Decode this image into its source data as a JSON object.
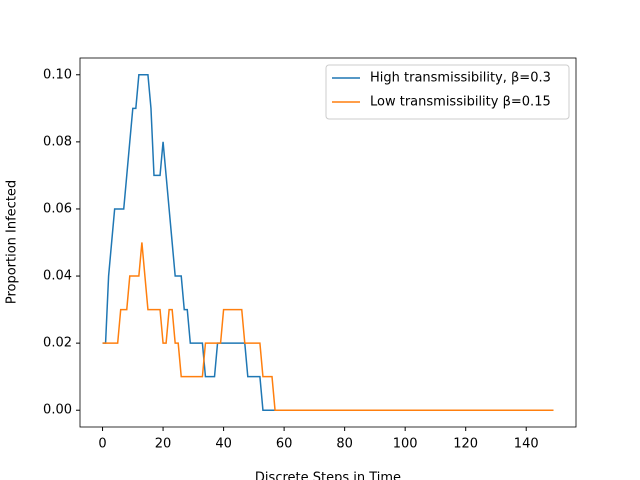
{
  "chart_data": {
    "type": "line",
    "xlabel": "Discrete Steps in Time",
    "ylabel": "Proportion Infected",
    "x": [
      0,
      1,
      2,
      3,
      4,
      5,
      6,
      7,
      8,
      9,
      10,
      11,
      12,
      13,
      14,
      15,
      16,
      17,
      18,
      19,
      20,
      21,
      22,
      23,
      24,
      25,
      26,
      27,
      28,
      29,
      30,
      31,
      32,
      33,
      34,
      35,
      36,
      37,
      38,
      39,
      40,
      41,
      42,
      43,
      44,
      45,
      46,
      47,
      48,
      49,
      50,
      51,
      52,
      53,
      54,
      55,
      56,
      57,
      58,
      59,
      60,
      61,
      62,
      63,
      64,
      65,
      66,
      67,
      68,
      69,
      70,
      71,
      72,
      73,
      74,
      75,
      76,
      77,
      78,
      79,
      80,
      81,
      82,
      83,
      84,
      85,
      86,
      87,
      88,
      89,
      90,
      91,
      92,
      93,
      94,
      95,
      96,
      97,
      98,
      99,
      100,
      101,
      102,
      103,
      104,
      105,
      106,
      107,
      108,
      109,
      110,
      111,
      112,
      113,
      114,
      115,
      116,
      117,
      118,
      119,
      120,
      121,
      122,
      123,
      124,
      125,
      126,
      127,
      128,
      129,
      130,
      131,
      132,
      133,
      134,
      135,
      136,
      137,
      138,
      139,
      140,
      141,
      142,
      143,
      144,
      145,
      146,
      147,
      148,
      149
    ],
    "series": [
      {
        "name": "High transmissibility, β=0.3",
        "color": "#1f77b4",
        "values": [
          0.02,
          0.02,
          0.04,
          0.05,
          0.06,
          0.06,
          0.06,
          0.06,
          0.07,
          0.08,
          0.09,
          0.09,
          0.1,
          0.1,
          0.1,
          0.1,
          0.09,
          0.07,
          0.07,
          0.07,
          0.08,
          0.07,
          0.06,
          0.05,
          0.04,
          0.04,
          0.04,
          0.03,
          0.03,
          0.02,
          0.02,
          0.02,
          0.02,
          0.02,
          0.01,
          0.01,
          0.01,
          0.01,
          0.02,
          0.02,
          0.02,
          0.02,
          0.02,
          0.02,
          0.02,
          0.02,
          0.02,
          0.02,
          0.01,
          0.01,
          0.01,
          0.01,
          0.01,
          0,
          0,
          0,
          0,
          0,
          0,
          0,
          0,
          0,
          0,
          0,
          0,
          0,
          0,
          0,
          0,
          0,
          0,
          0,
          0,
          0,
          0,
          0,
          0,
          0,
          0,
          0,
          0,
          0,
          0,
          0,
          0,
          0,
          0,
          0,
          0,
          0,
          0,
          0,
          0,
          0,
          0,
          0,
          0,
          0,
          0,
          0,
          0,
          0,
          0,
          0,
          0,
          0,
          0,
          0,
          0,
          0,
          0,
          0,
          0,
          0,
          0,
          0,
          0,
          0,
          0,
          0,
          0,
          0,
          0,
          0,
          0,
          0,
          0,
          0,
          0,
          0,
          0,
          0,
          0,
          0,
          0,
          0,
          0,
          0,
          0,
          0,
          0,
          0,
          0,
          0,
          0,
          0,
          0,
          0,
          0,
          0
        ]
      },
      {
        "name": "Low transmissibility β=0.15",
        "color": "#ff7f0e",
        "values": [
          0.02,
          0.02,
          0.02,
          0.02,
          0.02,
          0.02,
          0.03,
          0.03,
          0.03,
          0.04,
          0.04,
          0.04,
          0.04,
          0.05,
          0.04,
          0.03,
          0.03,
          0.03,
          0.03,
          0.03,
          0.02,
          0.02,
          0.03,
          0.03,
          0.02,
          0.02,
          0.01,
          0.01,
          0.01,
          0.01,
          0.01,
          0.01,
          0.01,
          0.01,
          0.02,
          0.02,
          0.02,
          0.02,
          0.02,
          0.02,
          0.03,
          0.03,
          0.03,
          0.03,
          0.03,
          0.03,
          0.03,
          0.02,
          0.02,
          0.02,
          0.02,
          0.02,
          0.02,
          0.01,
          0.01,
          0.01,
          0.01,
          0,
          0,
          0,
          0,
          0,
          0,
          0,
          0,
          0,
          0,
          0,
          0,
          0,
          0,
          0,
          0,
          0,
          0,
          0,
          0,
          0,
          0,
          0,
          0,
          0,
          0,
          0,
          0,
          0,
          0,
          0,
          0,
          0,
          0,
          0,
          0,
          0,
          0,
          0,
          0,
          0,
          0,
          0,
          0,
          0,
          0,
          0,
          0,
          0,
          0,
          0,
          0,
          0,
          0,
          0,
          0,
          0,
          0,
          0,
          0,
          0,
          0,
          0,
          0,
          0,
          0,
          0,
          0,
          0,
          0,
          0,
          0,
          0,
          0,
          0,
          0,
          0,
          0,
          0,
          0,
          0,
          0,
          0,
          0,
          0,
          0,
          0,
          0,
          0,
          0,
          0,
          0,
          0
        ]
      }
    ],
    "xlim": [
      -7.45,
      156.45
    ],
    "xticks": [
      0,
      20,
      40,
      60,
      80,
      100,
      120,
      140
    ],
    "ylim": [
      -0.005,
      0.105
    ],
    "yticks": [
      {
        "value": 0,
        "label": "0.00"
      },
      {
        "value": 0.02,
        "label": "0.02"
      },
      {
        "value": 0.04,
        "label": "0.04"
      },
      {
        "value": 0.06,
        "label": "0.06"
      },
      {
        "value": 0.08,
        "label": "0.08"
      },
      {
        "value": 0.1,
        "label": "0.10"
      }
    ],
    "legend": "upper right"
  }
}
